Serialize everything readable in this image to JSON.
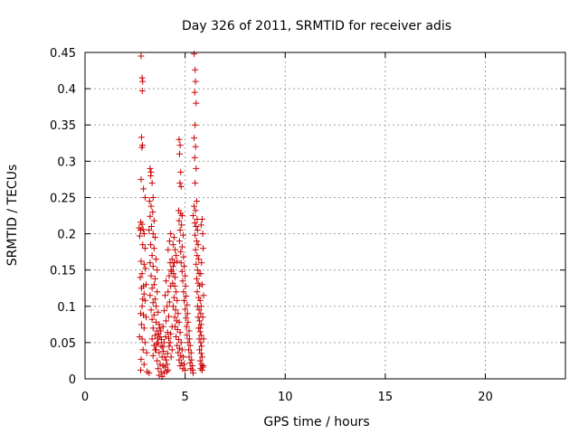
{
  "chart_data": {
    "type": "scatter",
    "title": "Day 326 of 2011, SRMTID for receiver adis",
    "xlabel": "GPS time / hours",
    "ylabel": "SRMTID / TECUs",
    "xlim": [
      0,
      24
    ],
    "ylim": [
      0,
      0.45
    ],
    "x_ticks": [
      0,
      5,
      10,
      15,
      20
    ],
    "x_tick_labels": [
      "0",
      "5",
      "10",
      "15",
      "20"
    ],
    "y_ticks": [
      0,
      0.05,
      0.1,
      0.15,
      0.2,
      0.25,
      0.3,
      0.35,
      0.4,
      0.45
    ],
    "y_tick_labels": [
      "0",
      "0.05",
      "0.1",
      "0.15",
      "0.2",
      "0.25",
      "0.3",
      "0.35",
      "0.4",
      "0.45"
    ],
    "grid": true,
    "marker": "+",
    "marker_color": "#cc0000",
    "series": [
      {
        "points": [
          [
            2.8,
            0.445
          ],
          [
            2.85,
            0.415
          ],
          [
            2.88,
            0.41
          ],
          [
            2.86,
            0.397
          ],
          [
            2.82,
            0.333
          ],
          [
            2.87,
            0.322
          ],
          [
            2.84,
            0.319
          ],
          [
            2.8,
            0.275
          ],
          [
            2.92,
            0.262
          ],
          [
            3.0,
            0.25
          ],
          [
            2.78,
            0.216
          ],
          [
            2.85,
            0.213
          ],
          [
            2.7,
            0.208
          ],
          [
            2.78,
            0.205
          ],
          [
            2.9,
            0.206
          ],
          [
            2.95,
            0.2
          ],
          [
            2.73,
            0.197
          ],
          [
            2.88,
            0.185
          ],
          [
            3.0,
            0.18
          ],
          [
            2.8,
            0.162
          ],
          [
            2.95,
            0.158
          ],
          [
            3.02,
            0.152
          ],
          [
            2.85,
            0.145
          ],
          [
            2.76,
            0.14
          ],
          [
            3.05,
            0.13
          ],
          [
            2.92,
            0.128
          ],
          [
            2.82,
            0.125
          ],
          [
            2.95,
            0.117
          ],
          [
            2.88,
            0.11
          ],
          [
            3.0,
            0.108
          ],
          [
            2.85,
            0.1
          ],
          [
            2.78,
            0.09
          ],
          [
            2.92,
            0.088
          ],
          [
            3.05,
            0.085
          ],
          [
            2.82,
            0.075
          ],
          [
            2.95,
            0.07
          ],
          [
            2.72,
            0.058
          ],
          [
            2.85,
            0.055
          ],
          [
            3.0,
            0.05
          ],
          [
            2.9,
            0.04
          ],
          [
            3.08,
            0.036
          ],
          [
            2.8,
            0.027
          ],
          [
            2.95,
            0.02
          ],
          [
            2.78,
            0.012
          ],
          [
            3.1,
            0.01
          ],
          [
            3.2,
            0.008
          ],
          [
            3.25,
            0.29
          ],
          [
            3.3,
            0.285
          ],
          [
            3.28,
            0.28
          ],
          [
            3.35,
            0.27
          ],
          [
            3.4,
            0.25
          ],
          [
            3.22,
            0.245
          ],
          [
            3.3,
            0.238
          ],
          [
            3.38,
            0.23
          ],
          [
            3.25,
            0.224
          ],
          [
            3.45,
            0.218
          ],
          [
            3.32,
            0.21
          ],
          [
            3.2,
            0.205
          ],
          [
            3.4,
            0.2
          ],
          [
            3.5,
            0.195
          ],
          [
            3.28,
            0.185
          ],
          [
            3.45,
            0.18
          ],
          [
            3.35,
            0.17
          ],
          [
            3.55,
            0.165
          ],
          [
            3.25,
            0.16
          ],
          [
            3.4,
            0.155
          ],
          [
            3.6,
            0.15
          ],
          [
            3.3,
            0.142
          ],
          [
            3.5,
            0.138
          ],
          [
            3.45,
            0.13
          ],
          [
            3.35,
            0.125
          ],
          [
            3.6,
            0.12
          ],
          [
            3.25,
            0.115
          ],
          [
            3.5,
            0.11
          ],
          [
            3.4,
            0.105
          ],
          [
            3.55,
            0.1
          ],
          [
            3.3,
            0.095
          ],
          [
            3.65,
            0.092
          ],
          [
            3.45,
            0.088
          ],
          [
            3.35,
            0.082
          ],
          [
            3.55,
            0.078
          ],
          [
            3.7,
            0.075
          ],
          [
            3.4,
            0.07
          ],
          [
            3.6,
            0.066
          ],
          [
            3.5,
            0.06
          ],
          [
            3.75,
            0.058
          ],
          [
            3.35,
            0.055
          ],
          [
            3.65,
            0.05
          ],
          [
            3.45,
            0.046
          ],
          [
            3.8,
            0.045
          ],
          [
            3.55,
            0.04
          ],
          [
            3.7,
            0.036
          ],
          [
            3.4,
            0.032
          ],
          [
            3.85,
            0.03
          ],
          [
            3.6,
            0.025
          ],
          [
            3.75,
            0.02
          ],
          [
            3.9,
            0.018
          ],
          [
            3.65,
            0.014
          ],
          [
            3.8,
            0.01
          ],
          [
            3.95,
            0.008
          ],
          [
            3.7,
            0.005
          ],
          [
            3.85,
            0.003
          ],
          [
            3.5,
            0.04
          ],
          [
            3.58,
            0.048
          ],
          [
            3.62,
            0.056
          ],
          [
            3.68,
            0.062
          ],
          [
            3.72,
            0.07
          ],
          [
            3.78,
            0.066
          ],
          [
            3.82,
            0.054
          ],
          [
            3.88,
            0.044
          ],
          [
            3.92,
            0.038
          ],
          [
            3.98,
            0.03
          ],
          [
            4.05,
            0.026
          ],
          [
            4.1,
            0.02
          ],
          [
            4.0,
            0.016
          ],
          [
            4.15,
            0.012
          ],
          [
            4.08,
            0.01
          ],
          [
            3.95,
            0.05
          ],
          [
            4.02,
            0.058
          ],
          [
            4.12,
            0.064
          ],
          [
            3.9,
            0.072
          ],
          [
            4.05,
            0.08
          ],
          [
            4.18,
            0.086
          ],
          [
            3.96,
            0.094
          ],
          [
            4.1,
            0.1
          ],
          [
            4.22,
            0.106
          ],
          [
            4.0,
            0.115
          ],
          [
            4.15,
            0.12
          ],
          [
            4.28,
            0.128
          ],
          [
            4.05,
            0.135
          ],
          [
            4.2,
            0.142
          ],
          [
            4.32,
            0.148
          ],
          [
            4.4,
            0.155
          ],
          [
            4.25,
            0.16
          ],
          [
            4.35,
            0.165
          ],
          [
            4.45,
            0.16
          ],
          [
            4.3,
            0.15
          ],
          [
            4.42,
            0.145
          ],
          [
            4.5,
            0.14
          ],
          [
            4.38,
            0.132
          ],
          [
            4.48,
            0.128
          ],
          [
            4.55,
            0.12
          ],
          [
            4.45,
            0.112
          ],
          [
            4.6,
            0.108
          ],
          [
            4.4,
            0.1
          ],
          [
            4.52,
            0.095
          ],
          [
            4.65,
            0.09
          ],
          [
            4.48,
            0.085
          ],
          [
            4.58,
            0.08
          ],
          [
            4.7,
            0.078
          ],
          [
            4.5,
            0.072
          ],
          [
            4.62,
            0.068
          ],
          [
            4.75,
            0.064
          ],
          [
            4.55,
            0.058
          ],
          [
            4.68,
            0.054
          ],
          [
            4.8,
            0.05
          ],
          [
            4.6,
            0.046
          ],
          [
            4.72,
            0.042
          ],
          [
            4.85,
            0.04
          ],
          [
            4.65,
            0.036
          ],
          [
            4.78,
            0.032
          ],
          [
            4.9,
            0.03
          ],
          [
            4.7,
            0.026
          ],
          [
            4.82,
            0.022
          ],
          [
            4.95,
            0.02
          ],
          [
            4.75,
            0.018
          ],
          [
            4.88,
            0.014
          ],
          [
            5.0,
            0.012
          ],
          [
            4.3,
            0.03
          ],
          [
            4.35,
            0.04
          ],
          [
            4.25,
            0.05
          ],
          [
            4.2,
            0.045
          ],
          [
            4.12,
            0.035
          ],
          [
            4.18,
            0.056
          ],
          [
            4.28,
            0.062
          ],
          [
            4.35,
            0.072
          ],
          [
            4.22,
            0.19
          ],
          [
            4.28,
            0.2
          ],
          [
            4.15,
            0.178
          ],
          [
            4.4,
            0.185
          ],
          [
            4.45,
            0.195
          ],
          [
            4.5,
            0.178
          ],
          [
            4.55,
            0.17
          ],
          [
            4.6,
            0.162
          ],
          [
            4.7,
            0.33
          ],
          [
            4.75,
            0.322
          ],
          [
            4.72,
            0.31
          ],
          [
            4.78,
            0.285
          ],
          [
            4.74,
            0.27
          ],
          [
            4.8,
            0.265
          ],
          [
            4.68,
            0.232
          ],
          [
            4.78,
            0.228
          ],
          [
            4.85,
            0.225
          ],
          [
            4.7,
            0.218
          ],
          [
            4.82,
            0.212
          ],
          [
            4.75,
            0.205
          ],
          [
            4.9,
            0.198
          ],
          [
            4.72,
            0.19
          ],
          [
            4.85,
            0.182
          ],
          [
            4.78,
            0.175
          ],
          [
            4.92,
            0.168
          ],
          [
            4.8,
            0.16
          ],
          [
            4.95,
            0.155
          ],
          [
            4.85,
            0.148
          ],
          [
            5.0,
            0.142
          ],
          [
            4.88,
            0.135
          ],
          [
            5.02,
            0.128
          ],
          [
            4.92,
            0.12
          ],
          [
            5.05,
            0.114
          ],
          [
            4.95,
            0.108
          ],
          [
            5.1,
            0.102
          ],
          [
            5.0,
            0.096
          ],
          [
            5.12,
            0.09
          ],
          [
            5.05,
            0.084
          ],
          [
            5.15,
            0.078
          ],
          [
            5.08,
            0.072
          ],
          [
            5.2,
            0.066
          ],
          [
            5.1,
            0.06
          ],
          [
            5.22,
            0.055
          ],
          [
            5.15,
            0.05
          ],
          [
            5.25,
            0.046
          ],
          [
            5.18,
            0.04
          ],
          [
            5.3,
            0.036
          ],
          [
            5.2,
            0.03
          ],
          [
            5.32,
            0.026
          ],
          [
            5.25,
            0.022
          ],
          [
            5.35,
            0.018
          ],
          [
            5.28,
            0.014
          ],
          [
            5.38,
            0.012
          ],
          [
            5.4,
            0.008
          ],
          [
            5.45,
            0.448
          ],
          [
            5.5,
            0.426
          ],
          [
            5.52,
            0.41
          ],
          [
            5.48,
            0.395
          ],
          [
            5.55,
            0.38
          ],
          [
            5.5,
            0.35
          ],
          [
            5.45,
            0.332
          ],
          [
            5.52,
            0.32
          ],
          [
            5.48,
            0.305
          ],
          [
            5.55,
            0.29
          ],
          [
            5.5,
            0.27
          ],
          [
            5.58,
            0.245
          ],
          [
            5.45,
            0.238
          ],
          [
            5.52,
            0.232
          ],
          [
            5.4,
            0.225
          ],
          [
            5.6,
            0.22
          ],
          [
            5.48,
            0.215
          ],
          [
            5.55,
            0.21
          ],
          [
            5.62,
            0.205
          ],
          [
            5.5,
            0.198
          ],
          [
            5.58,
            0.19
          ],
          [
            5.65,
            0.185
          ],
          [
            5.52,
            0.178
          ],
          [
            5.6,
            0.17
          ],
          [
            5.68,
            0.165
          ],
          [
            5.55,
            0.158
          ],
          [
            5.62,
            0.15
          ],
          [
            5.7,
            0.145
          ],
          [
            5.58,
            0.138
          ],
          [
            5.65,
            0.132
          ],
          [
            5.72,
            0.128
          ],
          [
            5.6,
            0.12
          ],
          [
            5.68,
            0.112
          ],
          [
            5.75,
            0.108
          ],
          [
            5.62,
            0.1
          ],
          [
            5.7,
            0.095
          ],
          [
            5.78,
            0.09
          ],
          [
            5.65,
            0.085
          ],
          [
            5.72,
            0.08
          ],
          [
            5.8,
            0.075
          ],
          [
            5.68,
            0.07
          ],
          [
            5.75,
            0.065
          ],
          [
            5.8,
            0.06
          ],
          [
            5.7,
            0.055
          ],
          [
            5.78,
            0.05
          ],
          [
            5.82,
            0.045
          ],
          [
            5.72,
            0.04
          ],
          [
            5.8,
            0.035
          ],
          [
            5.85,
            0.03
          ],
          [
            5.75,
            0.025
          ],
          [
            5.82,
            0.02
          ],
          [
            5.88,
            0.016
          ],
          [
            5.78,
            0.014
          ],
          [
            5.85,
            0.012
          ],
          [
            5.9,
            0.018
          ],
          [
            5.85,
            0.22
          ],
          [
            5.8,
            0.212
          ],
          [
            5.88,
            0.2
          ],
          [
            5.9,
            0.18
          ],
          [
            5.82,
            0.16
          ],
          [
            5.78,
            0.145
          ],
          [
            5.85,
            0.13
          ],
          [
            5.92,
            0.115
          ],
          [
            5.8,
            0.1
          ],
          [
            5.88,
            0.085
          ],
          [
            5.75,
            0.07
          ],
          [
            5.92,
            0.055
          ]
        ]
      }
    ]
  }
}
